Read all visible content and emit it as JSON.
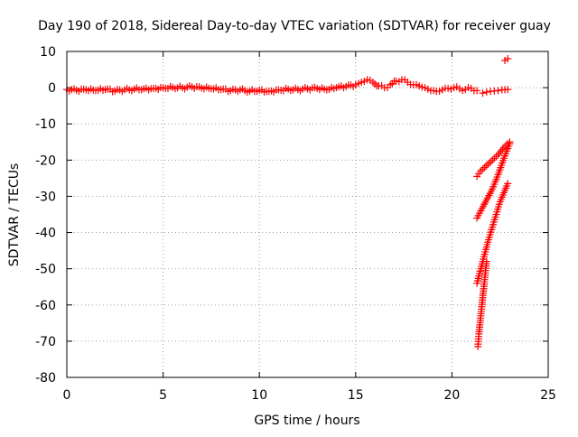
{
  "chart_data": {
    "type": "scatter",
    "title": "Day 190 of 2018, Sidereal Day-to-day VTEC variation (SDTVAR) for receiver guay",
    "xlabel": "GPS time / hours",
    "ylabel": "SDTVAR / TECUs",
    "xlim": [
      0,
      25
    ],
    "ylim": [
      -80,
      10
    ],
    "x_ticks": [
      0,
      5,
      10,
      15,
      20,
      25
    ],
    "y_ticks": [
      10,
      0,
      -10,
      -20,
      -30,
      -40,
      -50,
      -60,
      -70,
      -80
    ],
    "x_tick_labels": [
      "0",
      "5",
      "10",
      "15",
      "20",
      "25"
    ],
    "y_tick_labels": [
      "10",
      "0",
      "-10",
      "-20",
      "-30",
      "-40",
      "-50",
      "-60",
      "-70",
      "-80"
    ],
    "grid": true,
    "legend": "none",
    "marker": "plus",
    "color": "#ff0000",
    "series": [
      {
        "x": [
          0.0,
          0.5,
          1.0,
          1.5,
          2.0,
          2.5,
          3.0,
          3.5,
          4.0,
          4.5,
          5.0,
          5.5,
          6.0,
          6.5,
          7.0,
          7.5,
          8.0,
          8.5,
          9.0,
          9.5,
          10.0,
          10.5,
          11.0,
          11.5,
          12.0,
          12.5,
          13.0,
          13.5,
          14.0,
          14.5,
          15.0,
          15.3,
          15.6,
          15.9,
          16.2,
          16.5,
          16.8,
          17.1,
          17.4,
          17.7,
          18.0,
          18.3,
          18.6,
          18.9,
          19.2,
          19.5,
          19.8,
          20.1,
          20.4,
          20.7,
          21.0,
          21.3
        ],
        "y": [
          -0.5,
          -0.7,
          -0.6,
          -0.8,
          -0.5,
          -0.9,
          -0.6,
          -0.4,
          -0.3,
          -0.2,
          0.0,
          0.1,
          0.0,
          0.2,
          -0.1,
          -0.3,
          -0.5,
          -0.8,
          -0.6,
          -0.9,
          -0.7,
          -1.0,
          -0.6,
          -0.4,
          -0.5,
          -0.3,
          -0.2,
          -0.6,
          0.0,
          0.3,
          0.8,
          1.5,
          2.2,
          1.5,
          0.5,
          0.0,
          0.8,
          1.8,
          2.2,
          1.5,
          0.8,
          0.5,
          0.0,
          -0.8,
          -1.0,
          -0.6,
          -0.2,
          0.0,
          -0.3,
          -0.5,
          -0.2,
          -0.8
        ]
      },
      {
        "x": [
          21.6,
          21.8,
          22.0,
          22.2,
          22.4,
          22.6,
          22.9
        ],
        "y": [
          -1.5,
          -1.2,
          -1.0,
          -0.9,
          -0.8,
          -0.6,
          -0.5
        ]
      },
      {
        "x": [
          22.75,
          22.9
        ],
        "y": [
          7.5,
          8.0
        ]
      },
      {
        "x": [
          21.3,
          21.5,
          21.8,
          22.1,
          22.4,
          22.7,
          23.0
        ],
        "y": [
          -24.5,
          -23.0,
          -21.5,
          -20.0,
          -18.5,
          -16.5,
          -15.0
        ]
      },
      {
        "x": [
          21.3,
          21.5,
          21.8,
          22.1,
          22.4,
          22.7,
          23.0
        ],
        "y": [
          -36.0,
          -34.0,
          -31.0,
          -28.0,
          -24.0,
          -19.5,
          -15.5
        ]
      },
      {
        "x": [
          21.3,
          21.5,
          21.7,
          21.9,
          22.1,
          22.3,
          22.5,
          22.7,
          22.9
        ],
        "y": [
          -54.0,
          -50.0,
          -46.0,
          -42.0,
          -38.5,
          -35.0,
          -31.5,
          -29.0,
          -26.5
        ]
      },
      {
        "x": [
          21.35,
          21.4,
          21.5,
          21.6,
          21.7,
          21.8
        ],
        "y": [
          -71.5,
          -68.0,
          -63.0,
          -58.0,
          -53.0,
          -48.0
        ]
      }
    ]
  }
}
